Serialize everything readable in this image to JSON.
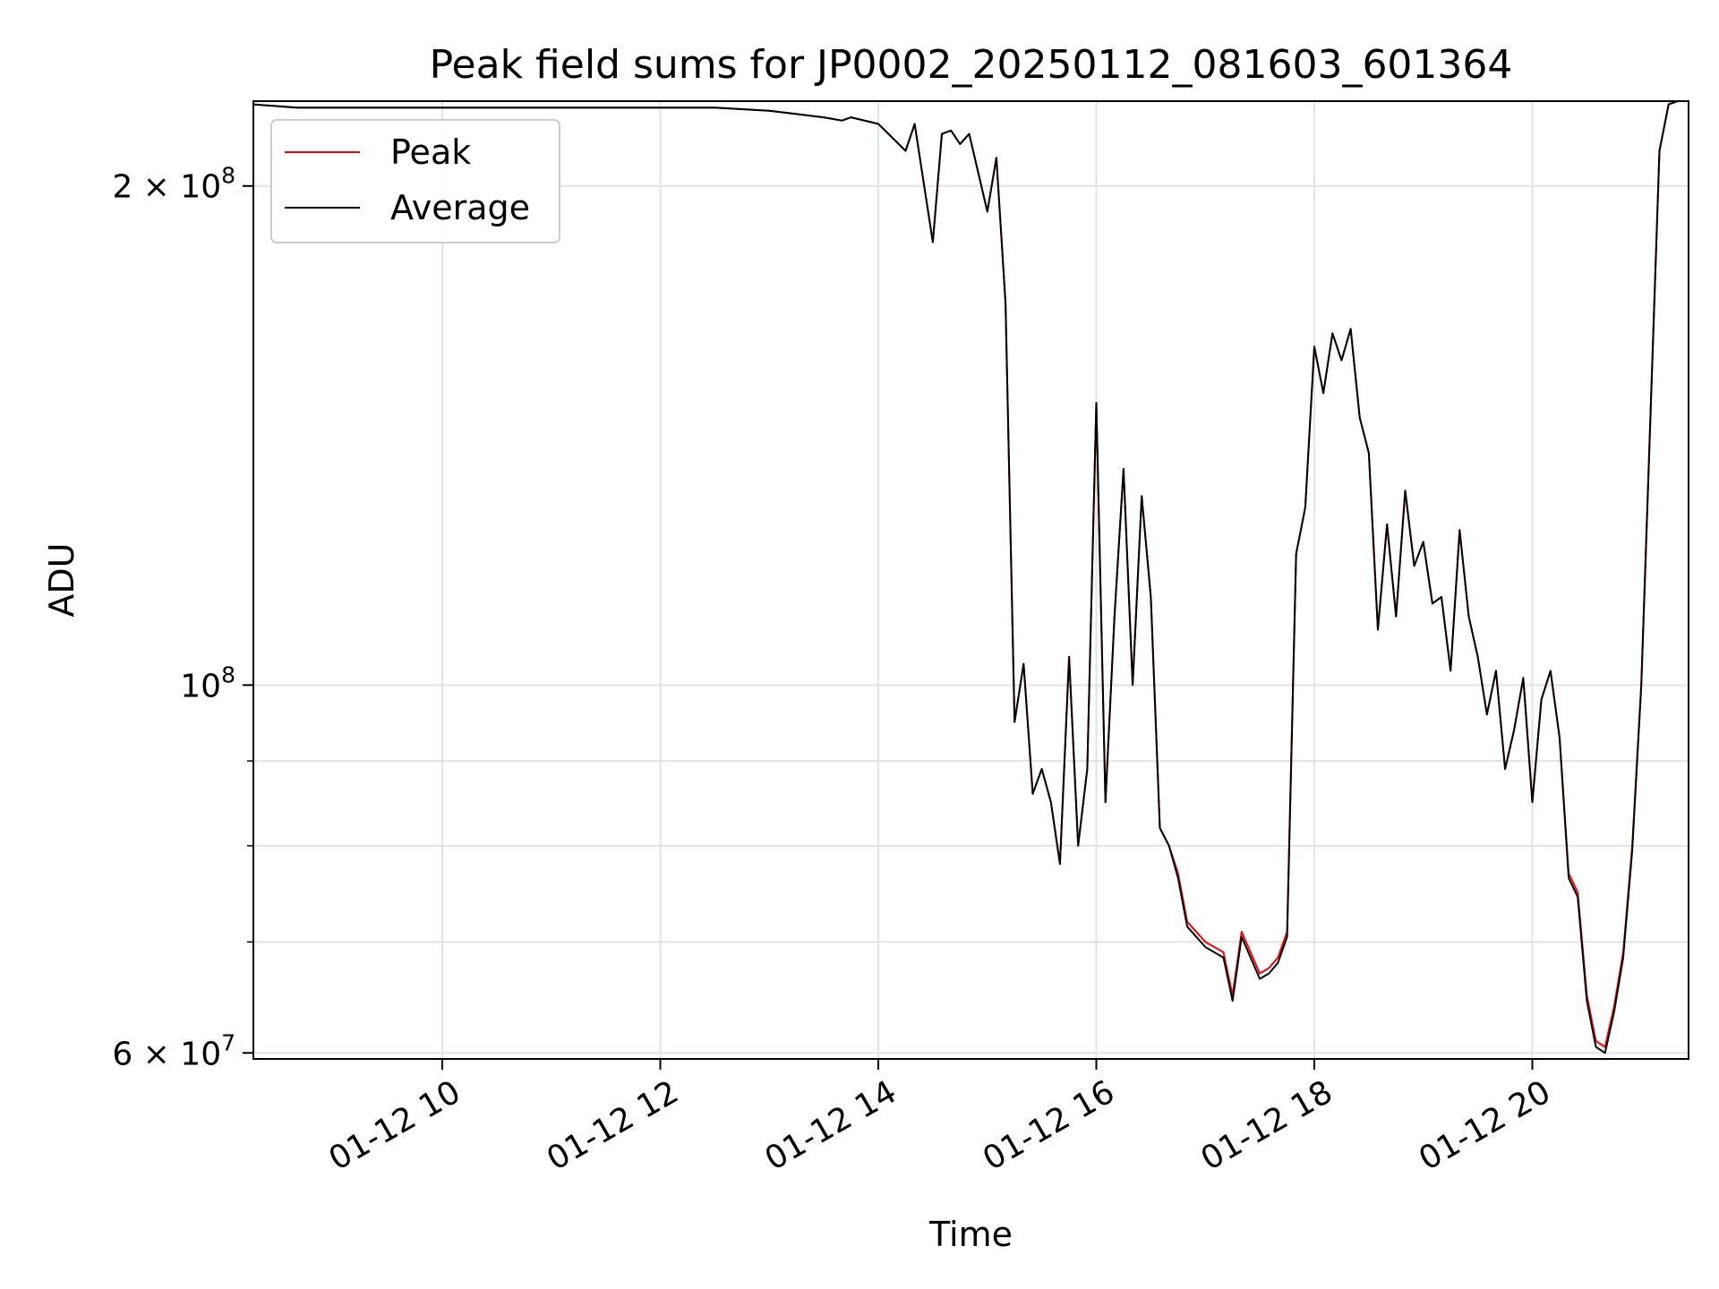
{
  "chart_data": {
    "type": "line",
    "title": "Peak field sums for JP0002_20250112_081603_601364",
    "xlabel": "Time",
    "ylabel": "ADU",
    "y_scale": "log",
    "ylim": [
      59500000,
      225000000
    ],
    "xlim": [
      "2025-01-12 08:16",
      "2025-01-12 21:26"
    ],
    "grid": true,
    "legend_position": "upper-left",
    "x_ticks": [
      {
        "time": "2025-01-12 10:00",
        "label": "01-12 10"
      },
      {
        "time": "2025-01-12 12:00",
        "label": "01-12 12"
      },
      {
        "time": "2025-01-12 14:00",
        "label": "01-12 14"
      },
      {
        "time": "2025-01-12 16:00",
        "label": "01-12 16"
      },
      {
        "time": "2025-01-12 18:00",
        "label": "01-12 18"
      },
      {
        "time": "2025-01-12 20:00",
        "label": "01-12 20"
      }
    ],
    "y_major_ticks": [
      {
        "value": 100000000,
        "mantissa": "",
        "base": "10",
        "exponent": "8"
      },
      {
        "value": 200000000,
        "mantissa": "2 × ",
        "base": "10",
        "exponent": "8"
      },
      {
        "value": 60000000,
        "mantissa": "6 × ",
        "base": "10",
        "exponent": "7"
      }
    ],
    "y_minor_ticks": [
      70000000,
      80000000,
      90000000
    ],
    "x": [
      "08:16",
      "08:40",
      "09:00",
      "09:30",
      "10:00",
      "10:30",
      "11:00",
      "11:30",
      "12:00",
      "12:30",
      "13:00",
      "13:15",
      "13:30",
      "13:40",
      "13:45",
      "14:00",
      "14:15",
      "14:20",
      "14:30",
      "14:35",
      "14:40",
      "14:45",
      "14:50",
      "15:00",
      "15:05",
      "15:10",
      "15:15",
      "15:20",
      "15:25",
      "15:30",
      "15:35",
      "15:40",
      "15:45",
      "15:50",
      "15:55",
      "16:00",
      "16:05",
      "16:10",
      "16:15",
      "16:20",
      "16:25",
      "16:30",
      "16:35",
      "16:40",
      "16:45",
      "16:50",
      "17:00",
      "17:10",
      "17:15",
      "17:20",
      "17:30",
      "17:35",
      "17:40",
      "17:45",
      "17:50",
      "17:55",
      "18:00",
      "18:05",
      "18:10",
      "18:15",
      "18:20",
      "18:25",
      "18:30",
      "18:35",
      "18:40",
      "18:45",
      "18:50",
      "18:55",
      "19:00",
      "19:05",
      "19:10",
      "19:15",
      "19:20",
      "19:25",
      "19:30",
      "19:35",
      "19:40",
      "19:45",
      "19:50",
      "19:55",
      "20:00",
      "20:05",
      "20:10",
      "20:15",
      "20:20",
      "20:25",
      "20:30",
      "20:35",
      "20:40",
      "20:45",
      "20:50",
      "20:55",
      "21:00",
      "21:05",
      "21:10",
      "21:15",
      "21:20",
      "21:26"
    ],
    "series": [
      {
        "name": "Peak",
        "color": "#ff0000",
        "values": [
          224000000,
          223000000,
          223000000,
          223000000,
          223000000,
          223000000,
          223000000,
          223000000,
          223000000,
          223000000,
          222000000,
          221000000,
          220000000,
          219000000,
          220000000,
          218000000,
          210000000,
          218000000,
          185000000,
          215000000,
          216000000,
          212000000,
          215000000,
          193000000,
          208000000,
          170000000,
          95000000,
          103000000,
          86000000,
          89000000,
          85000000,
          78000000,
          104000000,
          80000000,
          89000000,
          148000000,
          85000000,
          110000000,
          135000000,
          100000000,
          130000000,
          113000000,
          82000000,
          80000000,
          77000000,
          72000000,
          70000000,
          69000000,
          65000000,
          71000000,
          67000000,
          67500000,
          68500000,
          71000000,
          120000000,
          128000000,
          160000000,
          150000000,
          163000000,
          157000000,
          164000000,
          145000000,
          138000000,
          108000000,
          125000000,
          110000000,
          131000000,
          118000000,
          122000000,
          112000000,
          113000000,
          102000000,
          124000000,
          110000000,
          104000000,
          96000000,
          102000000,
          89000000,
          94000000,
          101000000,
          85000000,
          98000000,
          102000000,
          93000000,
          77000000,
          75000000,
          65000000,
          61000000,
          60500000,
          64000000,
          69000000,
          80000000,
          100000000,
          145000000,
          210000000,
          224000000,
          225000000,
          225000000
        ]
      },
      {
        "name": "Average",
        "color": "#000000",
        "values": [
          224000000,
          223000000,
          223000000,
          223000000,
          223000000,
          223000000,
          223000000,
          223000000,
          223000000,
          223000000,
          222000000,
          221000000,
          220000000,
          219000000,
          220000000,
          218000000,
          210000000,
          218000000,
          185000000,
          215000000,
          216000000,
          212000000,
          215000000,
          193000000,
          208000000,
          170000000,
          95000000,
          103000000,
          86000000,
          89000000,
          85000000,
          78000000,
          104000000,
          80000000,
          89000000,
          148000000,
          85000000,
          110000000,
          135000000,
          100000000,
          130000000,
          113000000,
          82000000,
          80000000,
          76500000,
          71500000,
          69500000,
          68500000,
          64500000,
          70500000,
          66500000,
          67000000,
          68000000,
          70500000,
          120000000,
          128000000,
          160000000,
          150000000,
          163000000,
          157000000,
          164000000,
          145000000,
          138000000,
          108000000,
          125000000,
          110000000,
          131000000,
          118000000,
          122000000,
          112000000,
          113000000,
          102000000,
          124000000,
          110000000,
          104000000,
          96000000,
          102000000,
          89000000,
          94000000,
          101000000,
          85000000,
          98000000,
          102000000,
          93000000,
          76500000,
          74500000,
          64500000,
          60500000,
          60000000,
          63500000,
          68500000,
          79500000,
          100000000,
          145000000,
          210000000,
          224000000,
          225000000,
          225000000
        ]
      }
    ]
  }
}
